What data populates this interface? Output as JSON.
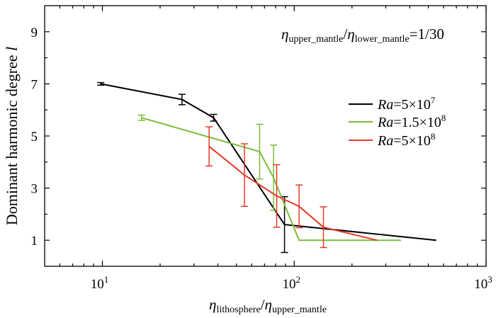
{
  "chart_data": {
    "type": "line",
    "x_scale": "log",
    "xlim": [
      5,
      1000
    ],
    "ylim": [
      0,
      10
    ],
    "grid": false,
    "legend_position": "right",
    "x_ticks": [
      {
        "value": 10,
        "base": "10",
        "exp": "1"
      },
      {
        "value": 100,
        "base": "10",
        "exp": "2"
      },
      {
        "value": 1000,
        "base": "10",
        "exp": "3"
      }
    ],
    "y_ticks": [
      1,
      3,
      5,
      7,
      9
    ],
    "xlabel": {
      "num": "η",
      "num_sub": "lithosphere",
      "slash": "/",
      "den": "η",
      "den_sub": "upper_mantle"
    },
    "ylabel": {
      "text": "Dominant harmonic degree ",
      "italic": "l"
    },
    "annotation": {
      "num": "η",
      "num_sub": "upper_mantle",
      "slash": "/",
      "den": "η",
      "den_sub": "lower_mantle",
      "tail": "=1/30"
    },
    "series": [
      {
        "label_italic": "Ra",
        "label_text": "=5×10",
        "label_sup": "7",
        "color": "#000000",
        "points": [
          {
            "x": 9.8,
            "y": 7.0,
            "err": 0.05
          },
          {
            "x": 26,
            "y": 6.4,
            "err": 0.2
          },
          {
            "x": 38,
            "y": 5.7,
            "err": 0.13
          },
          {
            "x": 89,
            "y": 1.6,
            "err": 1.07
          },
          {
            "x": 550,
            "y": 1.0
          }
        ]
      },
      {
        "label_italic": "Ra",
        "label_text": "=1.5×10",
        "label_sup": "8",
        "color": "#7dbb3c",
        "points": [
          {
            "x": 16,
            "y": 5.7,
            "err": 0.1
          },
          {
            "x": 66,
            "y": 4.4,
            "err": 1.05
          },
          {
            "x": 78,
            "y": 3.4,
            "err": 1.25
          },
          {
            "x": 106,
            "y": 1.0
          },
          {
            "x": 360,
            "y": 1.0
          }
        ]
      },
      {
        "label_italic": "Ra",
        "label_text": "=5×10",
        "label_sup": "8",
        "color": "#e53a27",
        "points": [
          {
            "x": 36,
            "y": 4.6,
            "err": 0.75
          },
          {
            "x": 55,
            "y": 3.5,
            "err": 1.2
          },
          {
            "x": 81,
            "y": 2.7,
            "err": 1.2
          },
          {
            "x": 106,
            "y": 2.3,
            "err": 0.82
          },
          {
            "x": 142,
            "y": 1.5,
            "err": 0.78
          },
          {
            "x": 270,
            "y": 1.0
          }
        ]
      }
    ]
  }
}
